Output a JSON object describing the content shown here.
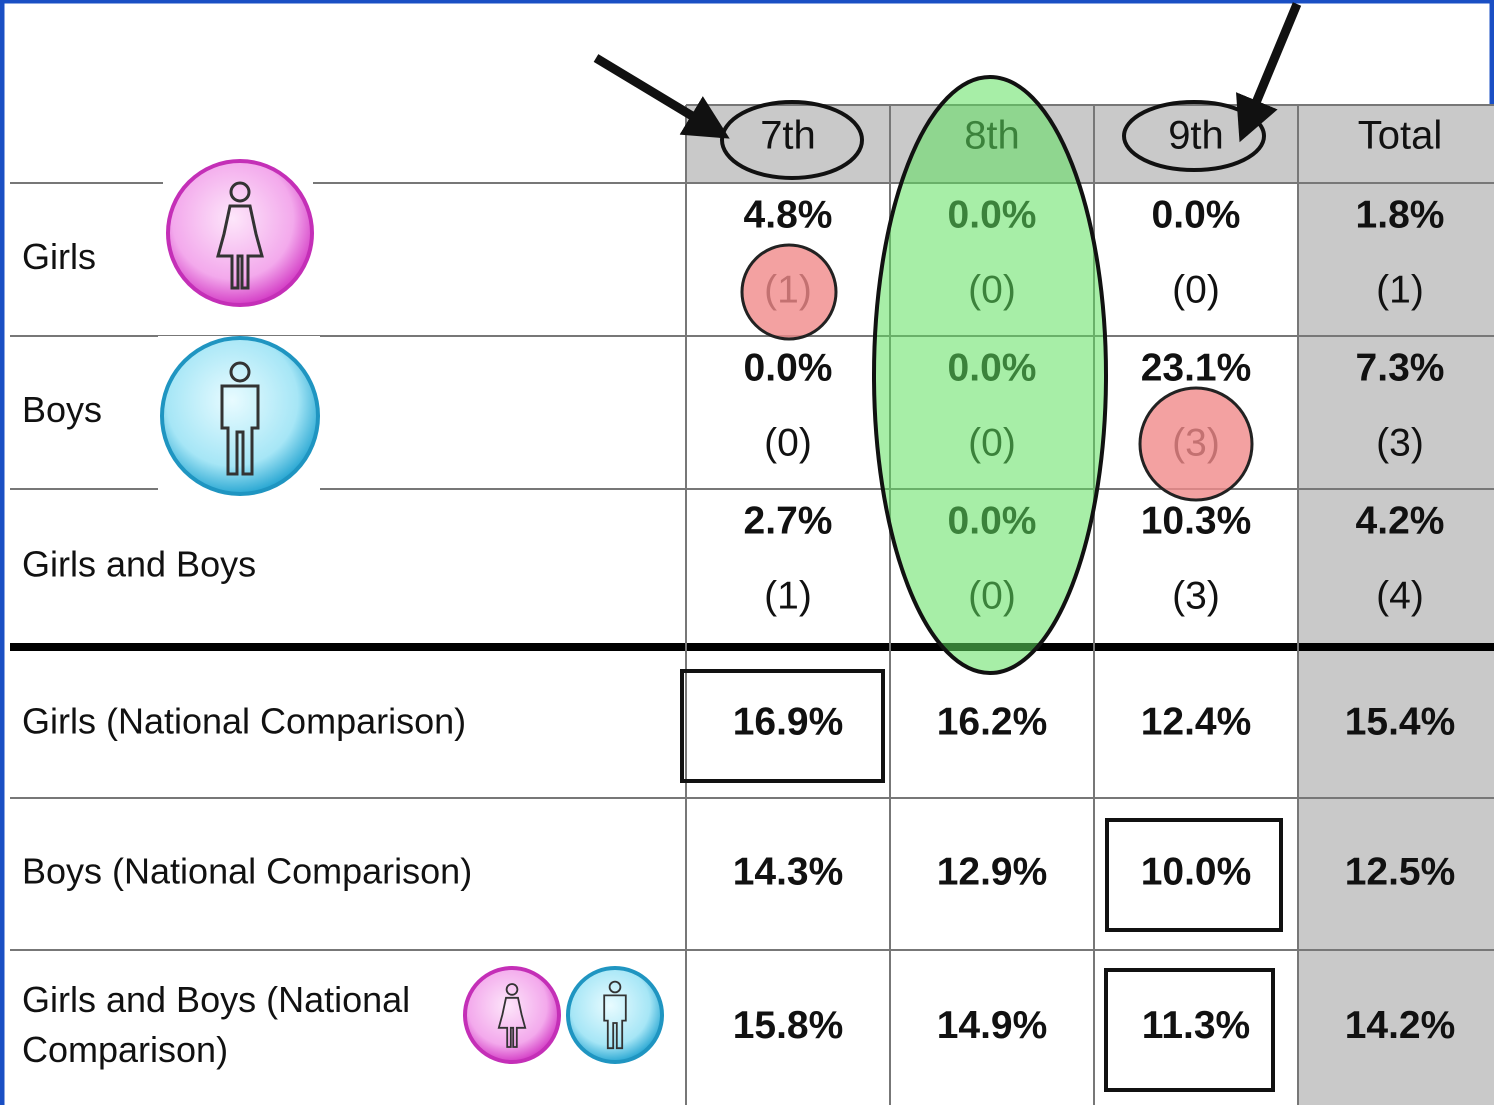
{
  "table": {
    "columns": [
      "7th",
      "8th",
      "9th",
      "Total"
    ],
    "rows": [
      {
        "label": [
          "Girls"
        ],
        "percents": [
          "4.8%",
          "0.0%",
          "0.0%",
          "1.8%"
        ],
        "counts": [
          "(1)",
          "(0)",
          "(0)",
          "(1)"
        ]
      },
      {
        "label": [
          "Boys"
        ],
        "percents": [
          "0.0%",
          "0.0%",
          "23.1%",
          "7.3%"
        ],
        "counts": [
          "(0)",
          "(0)",
          "(3)",
          "(3)"
        ]
      },
      {
        "label": [
          "Girls and Boys"
        ],
        "percents": [
          "2.7%",
          "0.0%",
          "10.3%",
          "4.2%"
        ],
        "counts": [
          "(1)",
          "(0)",
          "(3)",
          "(4)"
        ]
      },
      {
        "label": [
          "Girls (National Comparison)"
        ],
        "percents": [
          "16.9%",
          "16.2%",
          "12.4%",
          "15.4%"
        ]
      },
      {
        "label": [
          "Boys (National Comparison)"
        ],
        "percents": [
          "14.3%",
          "12.9%",
          "10.0%",
          "12.5%"
        ]
      },
      {
        "label": [
          "Girls and Boys (National",
          "Comparison)"
        ],
        "percents": [
          "15.8%",
          "14.9%",
          "11.3%",
          "14.2%"
        ]
      }
    ]
  }
}
